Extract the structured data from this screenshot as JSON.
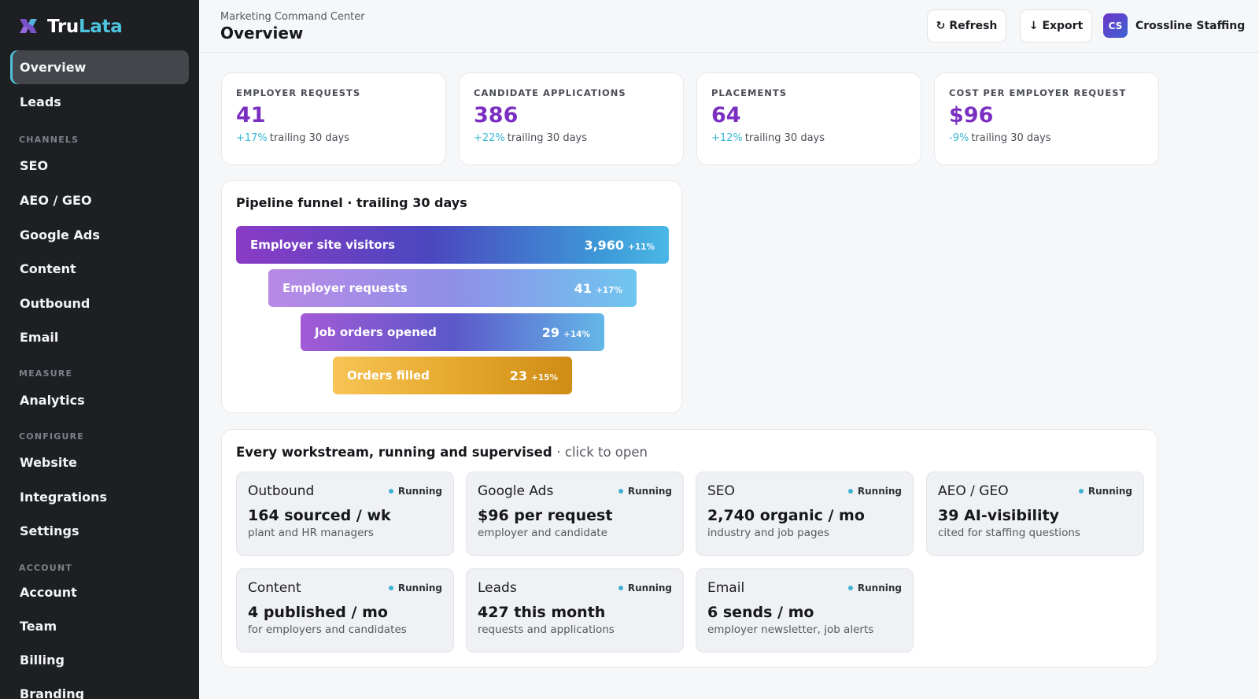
{
  "brand": {
    "name_part1": "Tru",
    "name_part2": "Lata",
    "accent": "#4ec3dd"
  },
  "sidebar": {
    "items": [
      {
        "label": "Overview",
        "active": true
      },
      {
        "label": "Leads"
      },
      {
        "section": "CHANNELS"
      },
      {
        "label": "SEO"
      },
      {
        "label": "AEO / GEO"
      },
      {
        "label": "Google Ads"
      },
      {
        "label": "Content"
      },
      {
        "label": "Outbound"
      },
      {
        "label": "Email"
      },
      {
        "section": "MEASURE"
      },
      {
        "label": "Analytics"
      },
      {
        "section": "CONFIGURE"
      },
      {
        "label": "Website"
      },
      {
        "label": "Integrations"
      },
      {
        "label": "Settings"
      },
      {
        "section": "ACCOUNT"
      },
      {
        "label": "Account"
      },
      {
        "label": "Team"
      },
      {
        "label": "Billing"
      },
      {
        "label": "Branding"
      }
    ]
  },
  "header": {
    "eyebrow": "Marketing Command Center",
    "title": "Overview",
    "refresh_label": "Refresh",
    "export_label": "Export",
    "avatar_initials": "CS",
    "account_name": "Crossline Staffing"
  },
  "kpis": [
    {
      "label": "EMPLOYER REQUESTS",
      "value": "41",
      "delta": "+17%",
      "period": "trailing 30 days"
    },
    {
      "label": "CANDIDATE APPLICATIONS",
      "value": "386",
      "delta": "+22%",
      "period": "trailing 30 days"
    },
    {
      "label": "PLACEMENTS",
      "value": "64",
      "delta": "+12%",
      "period": "trailing 30 days"
    },
    {
      "label": "COST PER EMPLOYER REQUEST",
      "value": "$96",
      "delta": "-9%",
      "period": "trailing 30 days"
    }
  ],
  "funnel": {
    "title": "Pipeline funnel · trailing 30 days",
    "stages": [
      {
        "label": "Employer site visitors",
        "value": "3,960",
        "delta": "+11%"
      },
      {
        "label": "Employer requests",
        "value": "41",
        "delta": "+17%"
      },
      {
        "label": "Job orders opened",
        "value": "29",
        "delta": "+14%"
      },
      {
        "label": "Orders filled",
        "value": "23",
        "delta": "+15%"
      }
    ]
  },
  "workstreams": {
    "title": "Every workstream, running and supervised",
    "subtitle": "· click to open",
    "tiles": [
      {
        "name": "Outbound",
        "status": "Running",
        "metric": "164 sourced / wk",
        "desc": "plant and HR managers"
      },
      {
        "name": "Google Ads",
        "status": "Running",
        "metric": "$96 per request",
        "desc": "employer and candidate"
      },
      {
        "name": "SEO",
        "status": "Running",
        "metric": "2,740 organic / mo",
        "desc": "industry and job pages"
      },
      {
        "name": "AEO / GEO",
        "status": "Running",
        "metric": "39 AI-visibility",
        "desc": "cited for staffing questions"
      },
      {
        "name": "Content",
        "status": "Running",
        "metric": "4 published / mo",
        "desc": "for employers and candidates"
      },
      {
        "name": "Leads",
        "status": "Running",
        "metric": "427 this month",
        "desc": "requests and applications"
      },
      {
        "name": "Email",
        "status": "Running",
        "metric": "6 sends / mo",
        "desc": "employer newsletter, job alerts"
      }
    ]
  },
  "colors": {
    "kpi_value": "#7b2fc0",
    "delta": "#38b8d6",
    "status_dot": "#3bb4d3",
    "sidebar_bg": "#1d1f23"
  },
  "icons": {
    "logo": "brand-mark-icon",
    "refresh": "refresh-icon",
    "export": "download-icon"
  }
}
